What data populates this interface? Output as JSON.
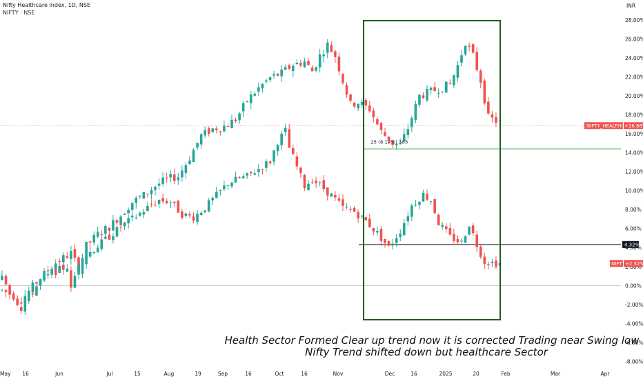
{
  "header": {
    "title": "Nifty Healthcare Index, 1D, NSE",
    "subtitle": "NIFTY · NSE"
  },
  "currency": "INR",
  "colors": {
    "up": "#26a69a",
    "down": "#ef5350",
    "box": "#1b5e20",
    "support_line": "#a5d6a7",
    "hline_dark": "#131722",
    "zero_line": "#b2b5be",
    "healthcare_tag": "#ef5350",
    "nifty_tag": "#ef5350",
    "dark_tag": "#131722"
  },
  "tags": {
    "healthcare_name": "NIFTY_HEALTHCARE",
    "healthcare_value": "+16.86%",
    "nifty_name": "NIFTY",
    "nifty_value": "+2.32%",
    "hline_value": "4.32%"
  },
  "bubble_label": "25 (8.14%) 385",
  "annotation": {
    "line1": "Health Sector Formed Clear up trend  now it is corrected Trading near Swing low",
    "line2": "Nifty Trend shifted down but healthcare Sector"
  },
  "chart_data": {
    "type": "candlestick",
    "y_axis_labels": [
      "28.00%",
      "26.00%",
      "24.00%",
      "22.00%",
      "20.00%",
      "18.00%",
      "16.00%",
      "14.00%",
      "12.00%",
      "10.00%",
      "8.00%",
      "6.00%",
      "4.00%",
      "2.00%",
      "0.00%",
      "-2.00%",
      "-4.00%",
      "-6.00%",
      "-8.00%"
    ],
    "x_axis_labels": [
      "May",
      "16",
      "Jun",
      "Jul",
      "15",
      "Aug",
      "19",
      "Sep",
      "16",
      "Oct",
      "16",
      "Nov",
      "Dec",
      "16",
      "2025",
      "20",
      "Feb",
      "Mar",
      "Apr"
    ],
    "ylim": [
      -8,
      28
    ],
    "levels": {
      "support_healthcare": 14.4,
      "nifty_hline": 4.32,
      "zero": 0
    },
    "series": [
      {
        "name": "NIFTY_HEALTHCARE",
        "path": [
          [
            0,
            -0.5
          ],
          [
            5,
            -1.5
          ],
          [
            10,
            0.8
          ],
          [
            14,
            2.4
          ],
          [
            18,
            3.4
          ],
          [
            20,
            1.8
          ],
          [
            22,
            4.2
          ],
          [
            25,
            5.4
          ],
          [
            28,
            6.2
          ],
          [
            31,
            7.4
          ],
          [
            34,
            8.8
          ],
          [
            37,
            9.5
          ],
          [
            40,
            10.5
          ],
          [
            43,
            11.2
          ],
          [
            46,
            11.5
          ],
          [
            49,
            13.5
          ],
          [
            52,
            15.8
          ],
          [
            55,
            16.5
          ],
          [
            58,
            16.8
          ],
          [
            61,
            17.5
          ],
          [
            64,
            19.5
          ],
          [
            67,
            20.8
          ],
          [
            70,
            21.9
          ],
          [
            73,
            22.4
          ],
          [
            76,
            23.3
          ],
          [
            79,
            23.6
          ],
          [
            81,
            22.6
          ],
          [
            83,
            24.2
          ],
          [
            85,
            25.4
          ],
          [
            87,
            24.2
          ],
          [
            89,
            21.6
          ],
          [
            91,
            19.1
          ],
          [
            93,
            19.3
          ],
          [
            96,
            18.6
          ],
          [
            99,
            16.2
          ],
          [
            102,
            15.0
          ],
          [
            104,
            14.8
          ],
          [
            106,
            16.6
          ],
          [
            109,
            20.0
          ],
          [
            113,
            20.6
          ],
          [
            117,
            21.2
          ],
          [
            119,
            23.2
          ],
          [
            121,
            25.7
          ],
          [
            123,
            24.2
          ],
          [
            125,
            21.6
          ],
          [
            127,
            17.7
          ],
          [
            130,
            17.2
          ]
        ],
        "last_value": 16.86
      },
      {
        "name": "NIFTY",
        "path": [
          [
            0,
            0.8
          ],
          [
            5,
            -2.4
          ],
          [
            10,
            0.5
          ],
          [
            14,
            1.5
          ],
          [
            17,
            2.0
          ],
          [
            18,
            -0.5
          ],
          [
            20,
            2.5
          ],
          [
            23,
            3.5
          ],
          [
            26,
            4.5
          ],
          [
            29,
            5.5
          ],
          [
            32,
            6.5
          ],
          [
            35,
            7.3
          ],
          [
            38,
            8.2
          ],
          [
            41,
            9.0
          ],
          [
            44,
            8.8
          ],
          [
            47,
            7.5
          ],
          [
            50,
            7.2
          ],
          [
            53,
            8.2
          ],
          [
            56,
            9.5
          ],
          [
            59,
            10.8
          ],
          [
            62,
            11.3
          ],
          [
            64,
            11.5
          ],
          [
            67,
            12.3
          ],
          [
            70,
            13.1
          ],
          [
            72,
            15.2
          ],
          [
            74,
            16.3
          ],
          [
            75,
            14.5
          ],
          [
            77,
            12.5
          ],
          [
            79,
            10.5
          ],
          [
            81,
            11.2
          ],
          [
            83,
            10.6
          ],
          [
            86,
            9.5
          ],
          [
            89,
            8.2
          ],
          [
            92,
            7.8
          ],
          [
            95,
            6.8
          ],
          [
            98,
            5.5
          ],
          [
            101,
            4.0
          ],
          [
            104,
            5.8
          ],
          [
            107,
            8.4
          ],
          [
            110,
            9.6
          ],
          [
            112,
            9.0
          ],
          [
            114,
            6.6
          ],
          [
            117,
            5.1
          ],
          [
            120,
            4.5
          ],
          [
            122,
            6.5
          ],
          [
            124,
            4.3
          ],
          [
            126,
            2.5
          ],
          [
            130,
            2.32
          ]
        ],
        "last_value": 2.32
      }
    ]
  }
}
